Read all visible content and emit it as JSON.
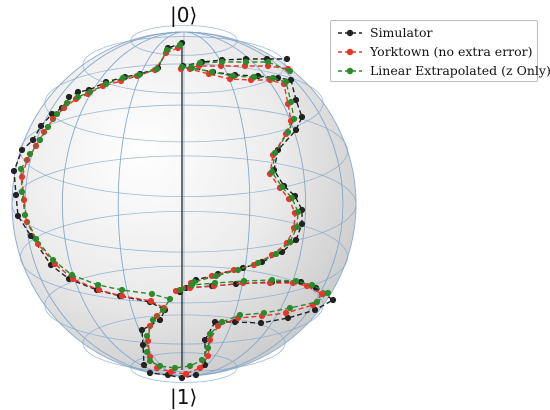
{
  "chart_data": {
    "type": "line",
    "kind": "bloch-sphere-trajectory",
    "north_label": "|0⟩",
    "south_label": "|1⟩",
    "series": [
      {
        "name": "Simulator",
        "color": "#222222",
        "marker": "circle",
        "linestyle": "dashed",
        "points": [
          [
            182,
            43
          ],
          [
            168,
            48
          ],
          [
            158,
            68
          ],
          [
            140,
            74
          ],
          [
            125,
            77
          ],
          [
            106,
            82
          ],
          [
            89,
            90
          ],
          [
            78,
            92
          ],
          [
            69,
            97
          ],
          [
            62,
            108
          ],
          [
            52,
            114
          ],
          [
            41,
            126
          ],
          [
            33,
            140
          ],
          [
            22,
            150
          ],
          [
            14,
            171
          ],
          [
            16,
            195
          ],
          [
            18,
            216
          ],
          [
            31,
            236
          ],
          [
            51,
            265
          ],
          [
            69,
            279
          ],
          [
            97,
            290
          ],
          [
            120,
            296
          ],
          [
            150,
            302
          ],
          [
            165,
            310
          ],
          [
            160,
            320
          ],
          [
            142,
            330
          ],
          [
            143,
            345
          ],
          [
            144,
            365
          ],
          [
            150,
            373
          ],
          [
            168,
            375
          ],
          [
            182,
            378
          ],
          [
            196,
            375
          ],
          [
            205,
            365
          ],
          [
            205,
            340
          ],
          [
            215,
            322
          ],
          [
            235,
            322
          ],
          [
            261,
            323
          ],
          [
            288,
            318
          ],
          [
            315,
            310
          ],
          [
            333,
            300
          ],
          [
            316,
            288
          ],
          [
            301,
            282
          ],
          [
            272,
            282
          ],
          [
            236,
            284
          ],
          [
            212,
            286
          ],
          [
            186,
            288
          ],
          [
            180,
            292
          ],
          [
            196,
            280
          ],
          [
            218,
            274
          ],
          [
            243,
            268
          ],
          [
            262,
            262
          ],
          [
            282,
            252
          ],
          [
            296,
            240
          ],
          [
            302,
            224
          ],
          [
            302,
            210
          ],
          [
            295,
            196
          ],
          [
            284,
            186
          ],
          [
            274,
            170
          ],
          [
            278,
            150
          ],
          [
            296,
            130
          ],
          [
            302,
            117
          ],
          [
            296,
            100
          ],
          [
            291,
            80
          ],
          [
            278,
            78
          ],
          [
            258,
            76
          ],
          [
            235,
            75
          ],
          [
            213,
            72
          ],
          [
            191,
            68
          ],
          [
            183,
            66
          ],
          [
            202,
            62
          ],
          [
            222,
            60
          ],
          [
            246,
            59
          ],
          [
            267,
            59
          ],
          [
            287,
            59
          ]
        ]
      },
      {
        "name": "Yorktown (no extra error)",
        "color": "#e8352c",
        "marker": "circle",
        "linestyle": "dashed",
        "points": [
          [
            178,
            48
          ],
          [
            166,
            53
          ],
          [
            155,
            70
          ],
          [
            137,
            76
          ],
          [
            121,
            81
          ],
          [
            103,
            86
          ],
          [
            88,
            94
          ],
          [
            76,
            99
          ],
          [
            64,
            108
          ],
          [
            53,
            119
          ],
          [
            44,
            132
          ],
          [
            36,
            146
          ],
          [
            27,
            160
          ],
          [
            22,
            177
          ],
          [
            24,
            200
          ],
          [
            27,
            222
          ],
          [
            38,
            244
          ],
          [
            55,
            264
          ],
          [
            73,
            279
          ],
          [
            99,
            290
          ],
          [
            122,
            296
          ],
          [
            151,
            301
          ],
          [
            164,
            308
          ],
          [
            157,
            316
          ],
          [
            150,
            326
          ],
          [
            148,
            341
          ],
          [
            150,
            357
          ],
          [
            157,
            368
          ],
          [
            171,
            372
          ],
          [
            186,
            374
          ],
          [
            200,
            368
          ],
          [
            208,
            356
          ],
          [
            210,
            340
          ],
          [
            218,
            326
          ],
          [
            238,
            318
          ],
          [
            262,
            316
          ],
          [
            286,
            313
          ],
          [
            313,
            305
          ],
          [
            322,
            294
          ],
          [
            307,
            286
          ],
          [
            293,
            283
          ],
          [
            270,
            283
          ],
          [
            243,
            283
          ],
          [
            214,
            286
          ],
          [
            190,
            288
          ],
          [
            176,
            291
          ],
          [
            191,
            283
          ],
          [
            212,
            276
          ],
          [
            234,
            270
          ],
          [
            254,
            265
          ],
          [
            272,
            255
          ],
          [
            287,
            243
          ],
          [
            294,
            228
          ],
          [
            295,
            213
          ],
          [
            289,
            199
          ],
          [
            280,
            188
          ],
          [
            270,
            174
          ],
          [
            273,
            155
          ],
          [
            286,
            134
          ],
          [
            291,
            121
          ],
          [
            288,
            104
          ],
          [
            284,
            84
          ],
          [
            270,
            80
          ],
          [
            251,
            80
          ],
          [
            230,
            79
          ],
          [
            209,
            74
          ],
          [
            190,
            69
          ],
          [
            181,
            69
          ],
          [
            199,
            66
          ],
          [
            221,
            66
          ],
          [
            245,
            66
          ],
          [
            268,
            66
          ],
          [
            288,
            69
          ]
        ]
      },
      {
        "name": "Linear Extrapolated (z Only)",
        "color": "#2b8a2b",
        "marker": "circle",
        "linestyle": "dashed",
        "points": [
          [
            180,
            45
          ],
          [
            167,
            50
          ],
          [
            157,
            69
          ],
          [
            139,
            75
          ],
          [
            123,
            78
          ],
          [
            106,
            84
          ],
          [
            90,
            92
          ],
          [
            78,
            97
          ],
          [
            67,
            103
          ],
          [
            57,
            114
          ],
          [
            48,
            127
          ],
          [
            40,
            140
          ],
          [
            30,
            154
          ],
          [
            21,
            169
          ],
          [
            22,
            192
          ],
          [
            25,
            215
          ],
          [
            36,
            239
          ],
          [
            53,
            260
          ],
          [
            72,
            275
          ],
          [
            98,
            285
          ],
          [
            122,
            290
          ],
          [
            152,
            294
          ],
          [
            170,
            299
          ],
          [
            163,
            310
          ],
          [
            153,
            320
          ],
          [
            147,
            336
          ],
          [
            147,
            352
          ],
          [
            150,
            361
          ],
          [
            160,
            366
          ],
          [
            175,
            368
          ],
          [
            190,
            366
          ],
          [
            202,
            360
          ],
          [
            208,
            348
          ],
          [
            210,
            334
          ],
          [
            222,
            322
          ],
          [
            240,
            315
          ],
          [
            264,
            313
          ],
          [
            290,
            308
          ],
          [
            317,
            302
          ],
          [
            328,
            293
          ],
          [
            312,
            285
          ],
          [
            296,
            281
          ],
          [
            272,
            280
          ],
          [
            244,
            281
          ],
          [
            215,
            283
          ],
          [
            192,
            285
          ],
          [
            180,
            290
          ],
          [
            194,
            282
          ],
          [
            216,
            276
          ],
          [
            238,
            270
          ],
          [
            258,
            263
          ],
          [
            276,
            254
          ],
          [
            290,
            242
          ],
          [
            297,
            227
          ],
          [
            298,
            212
          ],
          [
            292,
            198
          ],
          [
            282,
            187
          ],
          [
            272,
            172
          ],
          [
            275,
            153
          ],
          [
            288,
            132
          ],
          [
            294,
            119
          ],
          [
            291,
            102
          ],
          [
            286,
            82
          ],
          [
            273,
            78
          ],
          [
            254,
            77
          ],
          [
            233,
            76
          ],
          [
            212,
            72
          ],
          [
            192,
            68
          ],
          [
            182,
            67
          ],
          [
            200,
            63
          ],
          [
            222,
            62
          ],
          [
            246,
            62
          ],
          [
            268,
            62
          ],
          [
            290,
            71
          ]
        ]
      }
    ]
  }
}
